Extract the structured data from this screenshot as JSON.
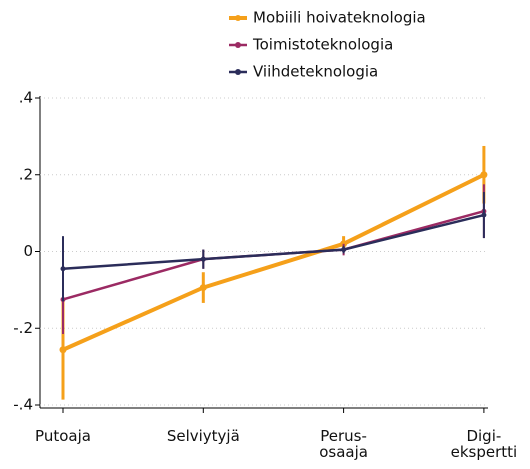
{
  "chart_data": {
    "type": "line",
    "categories": [
      "Putoaja",
      "Selviytyjä",
      "Perus-\nosaaja",
      "Digi-\nekspertti"
    ],
    "series": [
      {
        "name": "Mobiili hoivateknologia",
        "color": "#f5a01a",
        "values": [
          -0.256,
          -0.094,
          0.02,
          0.2
        ],
        "errors": [
          0.13,
          0.04,
          0.02,
          0.075
        ]
      },
      {
        "name": "Toimistoteknologia",
        "color": "#9b2a63",
        "values": [
          -0.125,
          -0.02,
          0.005,
          0.105
        ],
        "errors": [
          0.09,
          0.025,
          0.015,
          0.07
        ]
      },
      {
        "name": "Viihdeteknologia",
        "color": "#2b2d5a",
        "values": [
          -0.045,
          -0.02,
          0.005,
          0.095
        ],
        "errors": [
          0.085,
          0.025,
          0.01,
          0.06
        ]
      }
    ],
    "ylim": [
      -0.4,
      0.4
    ],
    "yticks": [
      {
        "value": -0.4,
        "label": "-.4"
      },
      {
        "value": -0.2,
        "label": "-.2"
      },
      0,
      {
        "value": 0.2,
        "label": ".2"
      },
      {
        "value": 0.4,
        "label": ".4"
      }
    ],
    "grid": true,
    "legend": "top-right"
  }
}
